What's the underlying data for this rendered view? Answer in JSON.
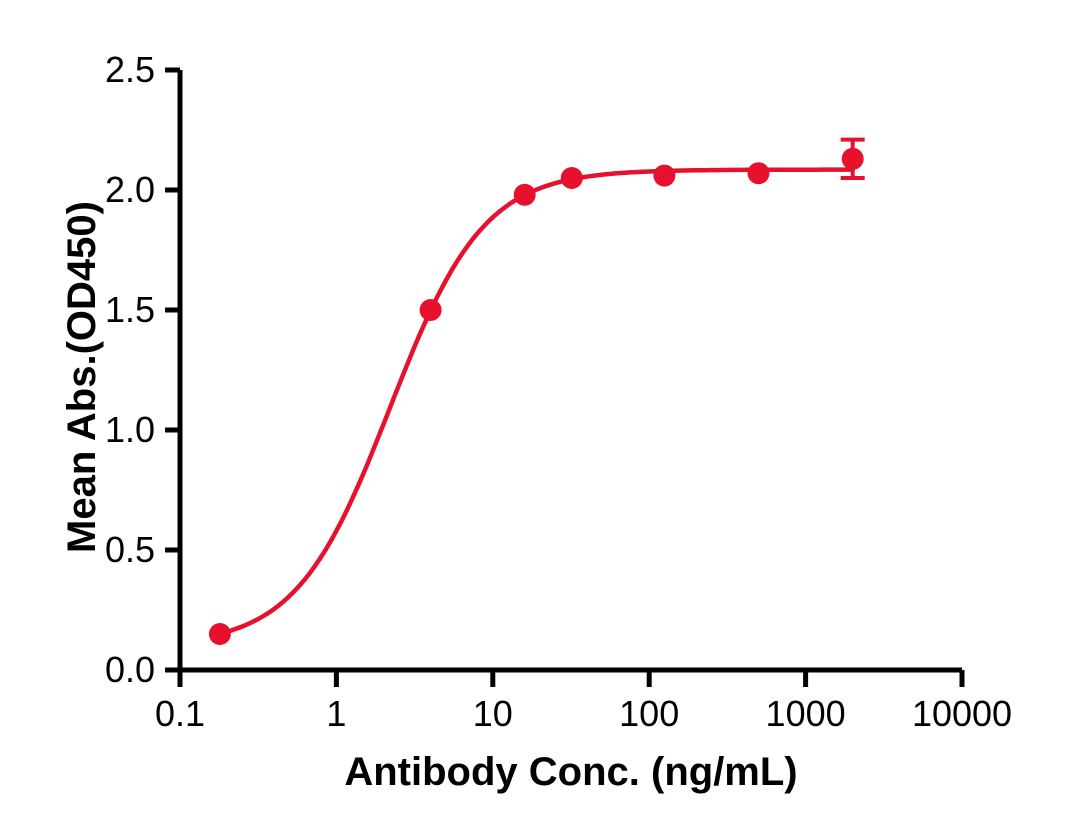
{
  "page": {
    "background": "#FFFFFF"
  },
  "chart_data": {
    "type": "scatter",
    "subtype": "dose-response-sigmoid-fit",
    "title": "",
    "xlabel": "Antibody Conc. (ng/mL)",
    "ylabel": "Mean Abs.(OD450)",
    "x_scale": "log10",
    "xlim": [
      0.1,
      10000
    ],
    "xlim_log10": [
      -1,
      4
    ],
    "ylim": [
      0,
      2.5
    ],
    "x_ticks": [
      0.1,
      1,
      10,
      100,
      1000,
      10000
    ],
    "x_tick_labels": [
      "0.1",
      "1",
      "10",
      "100",
      "1000",
      "10000"
    ],
    "y_ticks": [
      0.0,
      0.5,
      1.0,
      1.5,
      2.0,
      2.5
    ],
    "y_tick_labels": [
      "0.0",
      "0.5",
      "1.0",
      "1.5",
      "2.0",
      "2.5"
    ],
    "grid": false,
    "legend": null,
    "axis_color": "#000000",
    "series": [
      {
        "x": [
          0.18,
          4,
          16,
          32,
          125,
          500,
          2000
        ],
        "y": [
          0.15,
          1.5,
          1.98,
          2.05,
          2.06,
          2.07,
          2.13
        ],
        "y_err": [
          0,
          0,
          0,
          0,
          0,
          0,
          0.08
        ],
        "color": "#E8112D",
        "marker": "circle"
      }
    ],
    "fit": {
      "model": "4PL",
      "bottom": 0.1,
      "top": 2.085,
      "ec50": 2.2,
      "hill": 1.45,
      "curve_x_range": [
        0.18,
        2000
      ],
      "color": "#E8112D"
    }
  }
}
